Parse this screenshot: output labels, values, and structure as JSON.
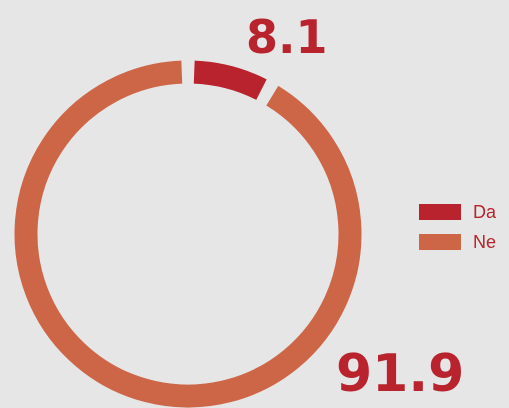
{
  "chart_data": {
    "type": "pie",
    "series": [
      {
        "name": "Da",
        "value": 8.1
      },
      {
        "name": "Ne",
        "value": 91.9
      }
    ],
    "data_labels": [
      "8.1",
      "91.9"
    ],
    "legend_placement": "right",
    "colors": [
      "#b8232d",
      "#cd6647"
    ],
    "label_color": "#b8232d",
    "legend_text_color": "#b8232d"
  }
}
